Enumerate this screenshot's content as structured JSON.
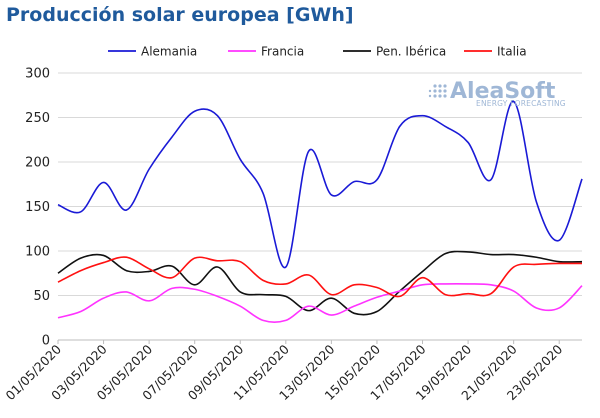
{
  "chart_data": {
    "type": "line",
    "title": "Producción solar europea [GWh]",
    "xlabel": "",
    "ylabel": "",
    "ylim": [
      0,
      300
    ],
    "yticks": [
      0,
      50,
      100,
      150,
      200,
      250,
      300
    ],
    "grid": true,
    "legend_position": "top",
    "x_start": "01/05/2020",
    "x_end": "24/05/2020",
    "x_tick_labels": [
      "01/05/2020",
      "03/05/2020",
      "05/05/2020",
      "07/05/2020",
      "09/05/2020",
      "11/05/2020",
      "13/05/2020",
      "15/05/2020",
      "17/05/2020",
      "19/05/2020",
      "21/05/2020",
      "23/05/2020"
    ],
    "x": [
      "01/05/2020",
      "02/05/2020",
      "03/05/2020",
      "04/05/2020",
      "05/05/2020",
      "06/05/2020",
      "07/05/2020",
      "08/05/2020",
      "09/05/2020",
      "10/05/2020",
      "11/05/2020",
      "12/05/2020",
      "13/05/2020",
      "14/05/2020",
      "15/05/2020",
      "16/05/2020",
      "17/05/2020",
      "18/05/2020",
      "19/05/2020",
      "20/05/2020",
      "21/05/2020",
      "22/05/2020",
      "23/05/2020",
      "24/05/2020"
    ],
    "series": [
      {
        "name": "Alemania",
        "color": "#1a1ad6",
        "values": [
          152,
          144,
          177,
          146,
          192,
          228,
          257,
          252,
          203,
          165,
          82,
          212,
          163,
          178,
          180,
          240,
          252,
          240,
          222,
          180,
          268,
          155,
          112,
          181
        ]
      },
      {
        "name": "Francia",
        "color": "#ff33ff",
        "values": [
          25,
          32,
          47,
          54,
          44,
          58,
          57,
          49,
          38,
          22,
          22,
          38,
          28,
          38,
          48,
          55,
          62,
          63,
          63,
          62,
          55,
          36,
          36,
          61
        ]
      },
      {
        "name": "Pen. Ibérica",
        "color": "#111111",
        "values": [
          75,
          92,
          95,
          78,
          77,
          83,
          62,
          82,
          54,
          51,
          49,
          33,
          47,
          30,
          32,
          55,
          77,
          97,
          99,
          96,
          96,
          93,
          88,
          88
        ]
      },
      {
        "name": "Italia",
        "color": "#ff1111",
        "values": [
          65,
          78,
          87,
          93,
          80,
          70,
          92,
          89,
          88,
          67,
          63,
          73,
          51,
          62,
          59,
          49,
          70,
          51,
          52,
          52,
          82,
          85,
          86,
          86
        ]
      }
    ]
  },
  "logo": {
    "main": "AleaSoft",
    "sub": "ENERGY FORECASTING"
  }
}
